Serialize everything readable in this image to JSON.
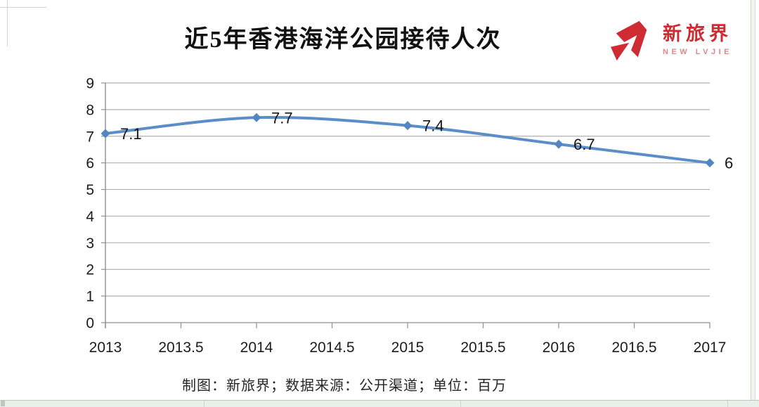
{
  "title": {
    "text": "近5年香港海洋公园接待人次"
  },
  "logo": {
    "name": "新旅界",
    "subtitle": "NEW LVJIE",
    "color": "#ce2b33",
    "subtitle_color": "#e2878c"
  },
  "footer": {
    "text": "制图：新旅界；数据来源：公开渠道；单位：百万"
  },
  "chart_data": {
    "type": "line",
    "title": "近5年香港海洋公园接待人次",
    "x": [
      2013,
      2014,
      2015,
      2016,
      2017
    ],
    "values": [
      7.1,
      7.7,
      7.4,
      6.7,
      6
    ],
    "point_labels": [
      "7.1",
      "7.7",
      "7.4",
      "6.7",
      "6"
    ],
    "xlabel": "",
    "ylabel": "",
    "xlim": [
      2013,
      2017
    ],
    "ylim": [
      0,
      9
    ],
    "x_tick_step": 0.5,
    "y_tick_step": 1,
    "x_tick_labels": [
      "2013",
      "2013.5",
      "2014",
      "2014.5",
      "2015",
      "2015.5",
      "2016",
      "2016.5",
      "2017"
    ],
    "y_tick_labels": [
      "0",
      "1",
      "2",
      "3",
      "4",
      "5",
      "6",
      "7",
      "8",
      "9"
    ],
    "grid": "horizontal",
    "legend": "none",
    "smooth": true,
    "marker": "diamond",
    "line_color": "#5b8dc8",
    "marker_color": "#5286c2",
    "grid_color": "#b0b0b0",
    "axis_color": "#8f8f8f",
    "tick_label_color": "#1c1c1c",
    "data_label_color": "#161616"
  }
}
